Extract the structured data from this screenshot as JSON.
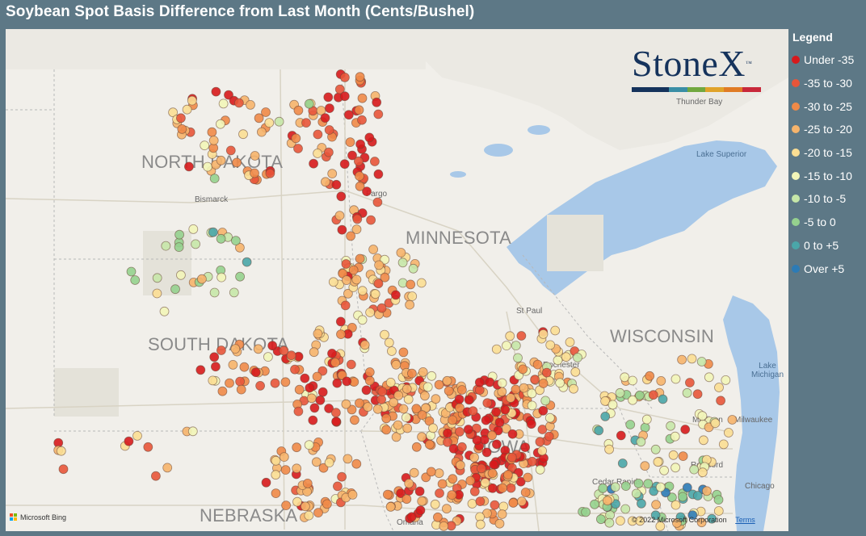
{
  "title": "Soybean Spot Basis Difference from Last Month (Cents/Bushel)",
  "legend": {
    "title": "Legend",
    "items": [
      {
        "label": "Under -35",
        "color": "#d7191c"
      },
      {
        "label": "-35 to -30",
        "color": "#e8553a"
      },
      {
        "label": "-30 to -25",
        "color": "#f08a48"
      },
      {
        "label": "-25 to -20",
        "color": "#f6b46c"
      },
      {
        "label": "-20 to -15",
        "color": "#fbde93"
      },
      {
        "label": "-15 to -10",
        "color": "#f2f5b8"
      },
      {
        "label": "-10 to -5",
        "color": "#c6e7a8"
      },
      {
        "label": "-5 to 0",
        "color": "#95d18e"
      },
      {
        "label": "0 to +5",
        "color": "#4aa6a9"
      },
      {
        "label": "Over +5",
        "color": "#2c7bb6"
      }
    ]
  },
  "logo": {
    "text": "StoneX",
    "tm": "™",
    "bar_colors": [
      "#15335c",
      "#15335c",
      "#3a8ea5",
      "#71a83f",
      "#e0a32a",
      "#e07b25",
      "#c8283a"
    ]
  },
  "map": {
    "states": [
      "NORTH DAKOTA",
      "MINNESOTA",
      "SOUTH DAKOTA",
      "WISCONSIN",
      "NEBRASKA",
      "IOWA"
    ],
    "cities": [
      "Bismarck",
      "Fargo",
      "St Paul",
      "Rochester",
      "Thunder Bay",
      "Madison",
      "Milwaukee",
      "Rockford",
      "Cedar Rapids",
      "Chicago",
      "Omaha"
    ],
    "lakes": [
      "Lake Superior",
      "Lake Michigan"
    ],
    "attribution": "Microsoft Bing",
    "copyright": "© 2022 Microsoft Corporation",
    "terms": "Terms"
  }
}
